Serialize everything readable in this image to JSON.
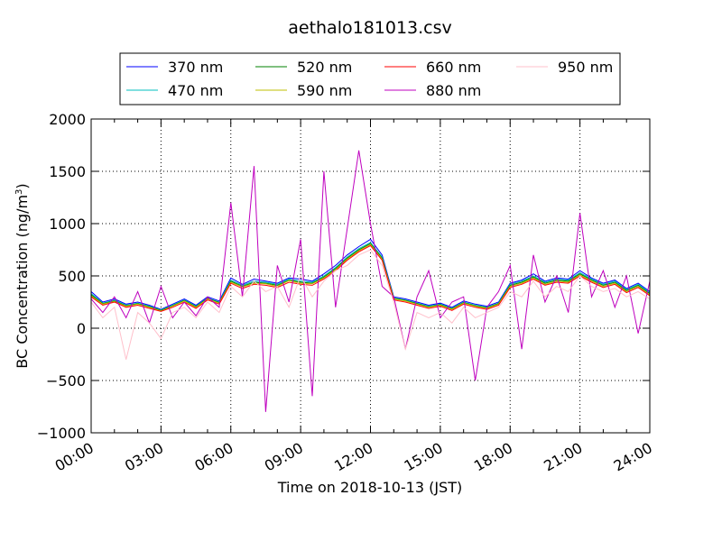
{
  "chart_data": {
    "type": "line",
    "title": "aethalo181013.csv",
    "xlabel": "Time on 2018-10-13 (JST)",
    "ylabel": "BC Concentration (ng/m",
    "ylabel_sup": "3",
    "ylabel_end": ")",
    "x_unit": "hours",
    "xlim": [
      0,
      24
    ],
    "ylim": [
      -1000,
      2000
    ],
    "x_ticks": [
      0,
      3,
      6,
      9,
      12,
      15,
      18,
      21,
      24
    ],
    "x_tick_labels": [
      "00:00",
      "03:00",
      "06:00",
      "09:00",
      "12:00",
      "15:00",
      "18:00",
      "21:00",
      "24:00"
    ],
    "y_ticks": [
      -1000,
      -500,
      0,
      500,
      1000,
      1500,
      2000
    ],
    "y_tick_labels": [
      "−1000",
      "−500",
      "0",
      "500",
      "1000",
      "1500",
      "2000"
    ],
    "grid": true,
    "legend_position": "top",
    "x": [
      0,
      0.5,
      1,
      1.5,
      2,
      2.5,
      3,
      3.5,
      4,
      4.5,
      5,
      5.5,
      6,
      6.5,
      7,
      7.5,
      8,
      8.5,
      9,
      9.5,
      10,
      10.5,
      11,
      11.5,
      12,
      12.5,
      13,
      13.5,
      14,
      14.5,
      15,
      15.5,
      16,
      16.5,
      17,
      17.5,
      18,
      18.5,
      19,
      19.5,
      20,
      20.5,
      21,
      21.5,
      22,
      22.5,
      23,
      23.5,
      24
    ],
    "series": [
      {
        "name": "370 nm",
        "color": "#0000ff",
        "values": [
          350,
          250,
          280,
          230,
          250,
          220,
          180,
          230,
          280,
          220,
          300,
          260,
          480,
          420,
          470,
          450,
          430,
          480,
          470,
          450,
          520,
          600,
          700,
          780,
          850,
          700,
          300,
          280,
          250,
          220,
          240,
          200,
          260,
          230,
          210,
          250,
          430,
          460,
          520,
          450,
          480,
          470,
          550,
          480,
          430,
          460,
          380,
          430,
          350
        ]
      },
      {
        "name": "470 nm",
        "color": "#00bfbf",
        "values": [
          330,
          240,
          270,
          220,
          240,
          210,
          175,
          220,
          270,
          210,
          290,
          250,
          460,
          410,
          450,
          440,
          420,
          470,
          450,
          440,
          500,
          580,
          680,
          760,
          820,
          680,
          290,
          270,
          240,
          210,
          230,
          190,
          250,
          220,
          200,
          240,
          420,
          450,
          500,
          440,
          470,
          460,
          530,
          470,
          420,
          450,
          370,
          420,
          340
        ]
      },
      {
        "name": "520 nm",
        "color": "#008000",
        "values": [
          320,
          235,
          260,
          215,
          235,
          205,
          170,
          215,
          265,
          205,
          285,
          245,
          450,
          400,
          440,
          430,
          410,
          460,
          440,
          430,
          490,
          570,
          670,
          750,
          810,
          670,
          285,
          265,
          235,
          205,
          225,
          185,
          245,
          215,
          195,
          235,
          410,
          440,
          490,
          430,
          460,
          450,
          520,
          460,
          410,
          440,
          360,
          410,
          330
        ]
      },
      {
        "name": "590 nm",
        "color": "#bfbf00",
        "values": [
          310,
          230,
          255,
          210,
          230,
          200,
          165,
          210,
          260,
          200,
          280,
          240,
          440,
          395,
          430,
          425,
          400,
          455,
          430,
          425,
          480,
          560,
          660,
          740,
          800,
          660,
          280,
          260,
          230,
          200,
          220,
          180,
          240,
          210,
          190,
          230,
          400,
          430,
          480,
          420,
          450,
          440,
          510,
          450,
          400,
          430,
          350,
          400,
          320
        ]
      },
      {
        "name": "660 nm",
        "color": "#ff0000",
        "values": [
          300,
          220,
          250,
          200,
          220,
          190,
          160,
          200,
          250,
          190,
          270,
          230,
          430,
          380,
          420,
          410,
          390,
          440,
          420,
          410,
          470,
          550,
          650,
          730,
          790,
          650,
          270,
          250,
          220,
          190,
          210,
          170,
          230,
          200,
          180,
          220,
          390,
          420,
          470,
          410,
          440,
          430,
          500,
          440,
          390,
          420,
          340,
          390,
          310
        ]
      },
      {
        "name": "880 nm",
        "color": "#bf00bf",
        "values": [
          280,
          150,
          300,
          100,
          350,
          50,
          400,
          100,
          250,
          120,
          300,
          200,
          1200,
          300,
          1550,
          -800,
          600,
          250,
          850,
          -650,
          1500,
          200,
          950,
          1700,
          1000,
          400,
          300,
          -200,
          300,
          550,
          100,
          250,
          300,
          -500,
          200,
          350,
          600,
          -200,
          700,
          250,
          500,
          150,
          1100,
          300,
          550,
          200,
          500,
          -50,
          450
        ]
      },
      {
        "name": "950 nm",
        "color": "#ffc0cb",
        "values": [
          250,
          100,
          200,
          -300,
          150,
          50,
          -100,
          150,
          200,
          100,
          250,
          150,
          400,
          300,
          450,
          350,
          400,
          200,
          500,
          300,
          450,
          550,
          600,
          700,
          750,
          600,
          250,
          -200,
          150,
          100,
          150,
          50,
          200,
          100,
          150,
          200,
          350,
          300,
          450,
          300,
          400,
          350,
          500,
          400,
          350,
          380,
          300,
          350,
          280
        ]
      }
    ]
  }
}
